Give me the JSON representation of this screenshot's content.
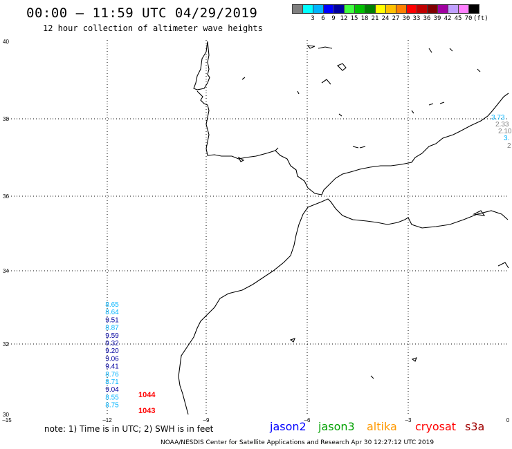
{
  "header": {
    "title": "00:00 – 11:59 UTC 04/29/2019",
    "subtitle": "12 hour collection of altimeter wave heights"
  },
  "legend": {
    "unit": "(ft)",
    "items": [
      {
        "label": "",
        "color": "#7f7f7f"
      },
      {
        "label": "3",
        "color": "#00ffff"
      },
      {
        "label": "6",
        "color": "#00b4ff"
      },
      {
        "label": "9",
        "color": "#0000ff"
      },
      {
        "label": "12",
        "color": "#0000a0"
      },
      {
        "label": "15",
        "color": "#40ff40"
      },
      {
        "label": "18",
        "color": "#00c000"
      },
      {
        "label": "21",
        "color": "#008000"
      },
      {
        "label": "24",
        "color": "#ffff00"
      },
      {
        "label": "27",
        "color": "#ffc000"
      },
      {
        "label": "30",
        "color": "#ff8000"
      },
      {
        "label": "33",
        "color": "#ff0000"
      },
      {
        "label": "36",
        "color": "#c00000"
      },
      {
        "label": "39",
        "color": "#800000"
      },
      {
        "label": "42",
        "color": "#a000a0"
      },
      {
        "label": "45",
        "color": "#c0a0ff"
      },
      {
        "label": "70",
        "color": "#ff80ff"
      },
      {
        "label": "",
        "color": "#000000"
      }
    ]
  },
  "axes": {
    "x_ticks": [
      "–15",
      "–12",
      "–9",
      "–6",
      "–3",
      "0"
    ],
    "y_ticks": [
      "40",
      "38",
      "36",
      "34",
      "32",
      "30"
    ]
  },
  "readings": [
    {
      "value": "8.65",
      "color": "#00b4ff"
    },
    {
      "value": "8.64",
      "color": "#00b4ff"
    },
    {
      "value": "9.51",
      "color": "#0000a0"
    },
    {
      "value": "8.87",
      "color": "#00b4ff"
    },
    {
      "value": "9.59",
      "color": "#0000a0"
    },
    {
      "value": "9.32",
      "color": "#0000a0"
    },
    {
      "value": "9.20",
      "color": "#0000a0"
    },
    {
      "value": "9.06",
      "color": "#0000a0"
    },
    {
      "value": "9.41",
      "color": "#0000a0"
    },
    {
      "value": "8.76",
      "color": "#00b4ff"
    },
    {
      "value": "8.71",
      "color": "#00b4ff"
    },
    {
      "value": "9.04",
      "color": "#0000a0"
    },
    {
      "value": "8.55",
      "color": "#00b4ff"
    },
    {
      "value": "8.75",
      "color": "#00b4ff"
    }
  ],
  "times": [
    "1044",
    "1043"
  ],
  "edge_readings": [
    {
      "value": "3.73",
      "color": "#00b4ff"
    },
    {
      "value": "2.33",
      "color": "#7f7f7f"
    },
    {
      "value": "2.10",
      "color": "#7f7f7f"
    },
    {
      "value": "3.",
      "color": "#00b4ff"
    },
    {
      "value": "2",
      "color": "#7f7f7f"
    }
  ],
  "footer": {
    "note": "note: 1) Time is in UTC; 2) SWH is in feet",
    "satellites": [
      {
        "name": "jason2",
        "color": "#0000ff"
      },
      {
        "name": "jason3",
        "color": "#00a000"
      },
      {
        "name": "altika",
        "color": "#ff9900"
      },
      {
        "name": "cryosat",
        "color": "#ff0000"
      },
      {
        "name": "s3a",
        "color": "#a00000"
      }
    ],
    "credit": "NOAA/NESDIS Center for Satellite Applications and Research     Apr 30 12:27:12 UTC 2019"
  }
}
